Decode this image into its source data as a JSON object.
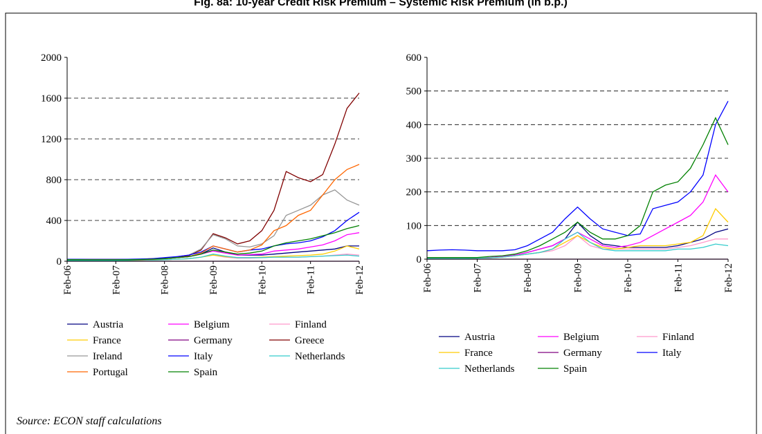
{
  "title": "Fig. 8a: 10-year Credit Risk Premium – Systemic Risk Premium  (in b.p.)",
  "source": "Source: ECON staff calculations",
  "chart_data": [
    {
      "type": "line",
      "categories": [
        "Feb-06",
        null,
        null,
        null,
        "Feb-07",
        null,
        null,
        null,
        "Feb-08",
        null,
        null,
        null,
        "Feb-09",
        null,
        null,
        null,
        "Feb-10",
        null,
        null,
        null,
        "Feb-11",
        null,
        null,
        null,
        "Feb-12"
      ],
      "ylim": [
        0,
        2000
      ],
      "yticks": [
        0,
        400,
        800,
        1200,
        1600,
        2000
      ],
      "grid": true,
      "series": [
        {
          "name": "Austria",
          "color": "#000080",
          "values": [
            10,
            10,
            10,
            10,
            10,
            12,
            14,
            18,
            25,
            35,
            45,
            70,
            130,
            90,
            60,
            60,
            60,
            70,
            80,
            90,
            100,
            110,
            120,
            150,
            150
          ]
        },
        {
          "name": "Belgium",
          "color": "#ff00ff",
          "values": [
            10,
            10,
            10,
            10,
            10,
            12,
            14,
            18,
            25,
            35,
            45,
            70,
            100,
            80,
            60,
            65,
            70,
            100,
            110,
            120,
            140,
            160,
            200,
            260,
            280
          ]
        },
        {
          "name": "Finland",
          "color": "#ff99cc",
          "values": [
            8,
            8,
            8,
            8,
            8,
            9,
            10,
            12,
            15,
            20,
            25,
            40,
            60,
            40,
            30,
            30,
            35,
            40,
            40,
            40,
            45,
            50,
            60,
            70,
            60
          ]
        },
        {
          "name": "France",
          "color": "#ffcc00",
          "values": [
            8,
            8,
            8,
            8,
            8,
            9,
            10,
            12,
            15,
            20,
            25,
            40,
            60,
            45,
            35,
            35,
            40,
            45,
            50,
            55,
            60,
            70,
            100,
            150,
            120
          ]
        },
        {
          "name": "Germany",
          "color": "#800080",
          "values": [
            0,
            0,
            0,
            0,
            0,
            0,
            0,
            0,
            0,
            0,
            0,
            0,
            0,
            0,
            0,
            0,
            0,
            0,
            0,
            0,
            0,
            0,
            0,
            0,
            0
          ]
        },
        {
          "name": "Greece",
          "color": "#800000",
          "values": [
            20,
            20,
            18,
            18,
            18,
            18,
            20,
            25,
            30,
            40,
            55,
            110,
            270,
            230,
            170,
            200,
            300,
            500,
            880,
            820,
            780,
            850,
            1150,
            1500,
            1650
          ]
        },
        {
          "name": "Ireland",
          "color": "#969696",
          "values": [
            15,
            15,
            14,
            14,
            14,
            15,
            17,
            20,
            30,
            45,
            60,
            120,
            260,
            220,
            150,
            140,
            170,
            250,
            450,
            500,
            550,
            650,
            700,
            600,
            550
          ]
        },
        {
          "name": "Italy",
          "color": "#0000ff",
          "values": [
            20,
            20,
            18,
            18,
            18,
            20,
            22,
            25,
            35,
            45,
            60,
            90,
            150,
            120,
            90,
            110,
            120,
            150,
            170,
            180,
            200,
            240,
            300,
            400,
            480
          ]
        },
        {
          "name": "Netherlands",
          "color": "#33cccc",
          "values": [
            8,
            8,
            8,
            8,
            8,
            9,
            10,
            12,
            15,
            20,
            25,
            40,
            70,
            50,
            35,
            35,
            35,
            40,
            40,
            40,
            45,
            50,
            55,
            60,
            50
          ]
        },
        {
          "name": "Portugal",
          "color": "#ff6600",
          "values": [
            15,
            15,
            14,
            14,
            14,
            14,
            15,
            18,
            25,
            35,
            45,
            80,
            150,
            120,
            90,
            110,
            160,
            300,
            350,
            450,
            500,
            650,
            800,
            900,
            950
          ]
        },
        {
          "name": "Spain",
          "color": "#008000",
          "values": [
            15,
            15,
            14,
            14,
            14,
            15,
            17,
            20,
            25,
            35,
            45,
            70,
            110,
            90,
            70,
            80,
            100,
            150,
            180,
            200,
            220,
            250,
            280,
            320,
            350
          ]
        }
      ]
    },
    {
      "type": "line",
      "categories": [
        "Feb-06",
        null,
        null,
        null,
        "Feb-07",
        null,
        null,
        null,
        "Feb-08",
        null,
        null,
        null,
        "Feb-09",
        null,
        null,
        null,
        "Feb-10",
        null,
        null,
        null,
        "Feb-11",
        null,
        null,
        null,
        "Feb-12"
      ],
      "ylim": [
        0,
        600
      ],
      "yticks": [
        0,
        100,
        200,
        300,
        400,
        500,
        600
      ],
      "grid": true,
      "series": [
        {
          "name": "Austria",
          "color": "#000080",
          "values": [
            2,
            2,
            2,
            2,
            3,
            5,
            8,
            12,
            20,
            30,
            40,
            60,
            110,
            70,
            45,
            40,
            35,
            35,
            35,
            35,
            40,
            50,
            60,
            80,
            90
          ]
        },
        {
          "name": "Belgium",
          "color": "#ff00ff",
          "values": [
            2,
            2,
            2,
            2,
            3,
            5,
            8,
            12,
            20,
            30,
            40,
            60,
            80,
            60,
            40,
            35,
            40,
            50,
            70,
            90,
            110,
            130,
            170,
            250,
            200
          ]
        },
        {
          "name": "Finland",
          "color": "#ff99cc",
          "values": [
            2,
            2,
            2,
            2,
            3,
            4,
            6,
            10,
            15,
            20,
            25,
            40,
            70,
            40,
            30,
            30,
            30,
            30,
            30,
            30,
            35,
            40,
            50,
            60,
            60
          ]
        },
        {
          "name": "France",
          "color": "#ffcc00",
          "values": [
            2,
            2,
            2,
            2,
            3,
            4,
            6,
            10,
            15,
            20,
            30,
            50,
            70,
            50,
            35,
            30,
            35,
            40,
            40,
            40,
            45,
            50,
            70,
            150,
            110
          ]
        },
        {
          "name": "Germany",
          "color": "#800080",
          "values": [
            0,
            0,
            0,
            0,
            0,
            0,
            0,
            0,
            0,
            0,
            0,
            0,
            0,
            0,
            0,
            0,
            0,
            0,
            0,
            0,
            0,
            0,
            0,
            0,
            0
          ]
        },
        {
          "name": "Italy",
          "color": "#0000ff",
          "values": [
            25,
            27,
            28,
            27,
            25,
            25,
            25,
            28,
            40,
            60,
            80,
            120,
            155,
            120,
            90,
            80,
            70,
            75,
            150,
            160,
            170,
            200,
            250,
            400,
            470
          ]
        },
        {
          "name": "Netherlands",
          "color": "#33cccc",
          "values": [
            2,
            2,
            2,
            2,
            3,
            4,
            6,
            10,
            15,
            20,
            30,
            60,
            80,
            50,
            30,
            25,
            25,
            25,
            25,
            25,
            30,
            30,
            35,
            45,
            40
          ]
        },
        {
          "name": "Spain",
          "color": "#008000",
          "values": [
            5,
            5,
            5,
            5,
            5,
            8,
            10,
            15,
            25,
            40,
            60,
            80,
            110,
            80,
            60,
            60,
            70,
            100,
            200,
            220,
            230,
            270,
            340,
            420,
            340
          ]
        }
      ]
    }
  ]
}
